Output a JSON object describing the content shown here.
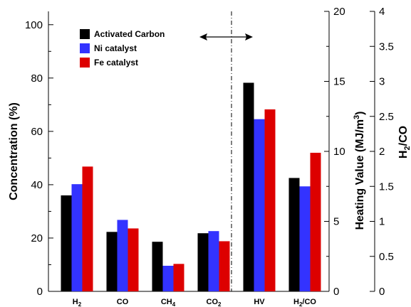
{
  "chart_data": {
    "type": "bar",
    "categories": [
      {
        "base": "H",
        "sub": "2",
        "tail": ""
      },
      {
        "base": "CO",
        "sub": "",
        "tail": ""
      },
      {
        "base": "CH",
        "sub": "4",
        "tail": ""
      },
      {
        "base": "CO",
        "sub": "2",
        "tail": ""
      },
      {
        "base": "HV",
        "sub": "",
        "tail": ""
      },
      {
        "base": "H",
        "sub": "2",
        "tail": "/CO"
      }
    ],
    "series": [
      {
        "name": "Activated Carbon",
        "color": "#000000",
        "values": [
          36.0,
          22.3,
          18.6,
          21.8,
          14.9,
          1.62
        ]
      },
      {
        "name": "Ni catalyst",
        "color": "#3333ff",
        "values": [
          40.2,
          26.8,
          9.6,
          22.6,
          12.3,
          1.5
        ]
      },
      {
        "name": "Fe catalyst",
        "color": "#dd0000",
        "values": [
          46.8,
          23.6,
          10.3,
          18.8,
          13.0,
          1.98
        ]
      }
    ],
    "value_axis_for_category": [
      "left",
      "left",
      "left",
      "left",
      "right1",
      "right2"
    ],
    "axes": {
      "left": {
        "label": "Concentration (%)",
        "range": [
          0,
          105
        ],
        "ticks": [
          "0",
          "20",
          "40",
          "60",
          "80",
          "100"
        ],
        "tick_values": [
          0,
          20,
          40,
          60,
          80,
          100
        ]
      },
      "right1": {
        "label_base": "Heating Value (MJ/m",
        "label_sup": "3",
        "label_tail": ")",
        "range": [
          0,
          20
        ],
        "ticks": [
          "0",
          "5",
          "10",
          "15",
          "20"
        ],
        "tick_values": [
          0,
          5,
          10,
          15,
          20
        ]
      },
      "right2": {
        "label_base": "H",
        "label_sub": "2",
        "label_tail": "/CO",
        "range": [
          0,
          4
        ],
        "ticks": [
          "0",
          "0.5",
          "1",
          "1.5",
          "2",
          "2.5",
          "3",
          "3.5",
          "4"
        ],
        "tick_values": [
          0,
          0.5,
          1,
          1.5,
          2,
          2.5,
          3,
          3.5,
          4
        ]
      }
    },
    "legend_placement": "top-left",
    "divider": "dash-dot vertical line between CO2 and HV with a double-headed arrow",
    "grid": false
  }
}
